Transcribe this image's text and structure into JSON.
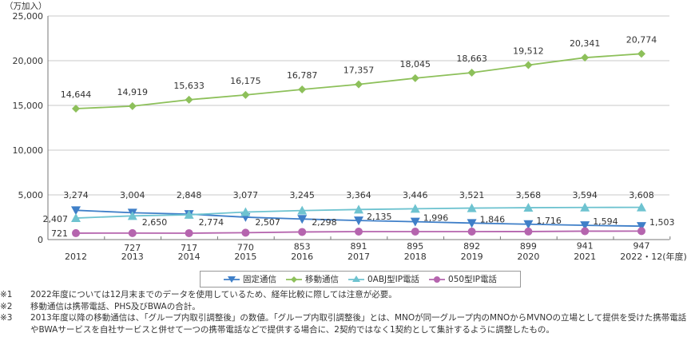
{
  "chart_data": {
    "type": "line",
    "unit_label": "（万加入）",
    "categories": [
      "2012",
      "2013",
      "2014",
      "2015",
      "2016",
      "2017",
      "2018",
      "2019",
      "2020",
      "2021",
      "2022・12(年度)"
    ],
    "ylim": [
      0,
      25000
    ],
    "yticks": [
      "0",
      "5,000",
      "10,000",
      "15,000",
      "20,000",
      "25,000"
    ],
    "ytick_values": [
      0,
      5000,
      10000,
      15000,
      20000,
      25000
    ],
    "grid": true,
    "legend_position": "bottom",
    "series": [
      {
        "name": "固定通信",
        "marker": "triangle-down",
        "color": "#3f7fc8",
        "values": [
          3274,
          3004,
          2848,
          2507,
          2298,
          2135,
          1996,
          1846,
          1716,
          1594,
          1503
        ],
        "labels": [
          "3,274",
          "3,004",
          "2,848",
          "2,507",
          "2,298",
          "2,135",
          "1,996",
          "1,846",
          "1,716",
          "1,594",
          "1,503"
        ]
      },
      {
        "name": "移動通信",
        "marker": "diamond",
        "color": "#8dc05a",
        "values": [
          14644,
          14919,
          15633,
          16175,
          16787,
          17357,
          18045,
          18663,
          19512,
          20341,
          20774
        ],
        "labels": [
          "14,644",
          "14,919",
          "15,633",
          "16,175",
          "16,787",
          "17,357",
          "18,045",
          "18,663",
          "19,512",
          "20,341",
          "20,774"
        ]
      },
      {
        "name": "0ABJ型IP電話",
        "marker": "triangle-up",
        "color": "#6ec3d0",
        "values": [
          2407,
          2650,
          2774,
          3077,
          3245,
          3364,
          3446,
          3521,
          3568,
          3594,
          3608
        ],
        "labels": [
          "2,407",
          "2,650",
          "2,774",
          "3,077",
          "3,245",
          "3,364",
          "3,446",
          "3,521",
          "3,568",
          "3,594",
          "3,608"
        ]
      },
      {
        "name": "050型IP電話",
        "marker": "circle",
        "color": "#b565ae",
        "values": [
          721,
          727,
          717,
          770,
          853,
          891,
          895,
          892,
          899,
          941,
          947
        ],
        "labels": [
          "721",
          "727",
          "717",
          "770",
          "853",
          "891",
          "895",
          "892",
          "899",
          "941",
          "947"
        ]
      }
    ]
  },
  "notes": [
    {
      "mark": "※1",
      "text": "2022年度については12月末までのデータを使用しているため、経年比較に際しては注意が必要。"
    },
    {
      "mark": "※2",
      "text": "移動通信は携帯電話、PHS及びBWAの合計。"
    },
    {
      "mark": "※3",
      "text": "2013年度以降の移動通信は、「グループ内取引調整後」の数値。「グループ内取引調整後」とは、MNOが同一グループ内のMNOからMVNOの立場として提供を受けた携帯電話やBWAサービスを自社サービスと併せて一つの携帯電話などで提供する場合に、2契約ではなく1契約として集計するように調整したもの。"
    }
  ]
}
